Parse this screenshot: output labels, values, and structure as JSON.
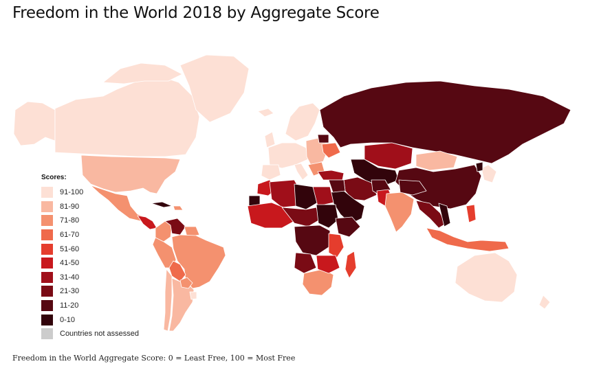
{
  "title": "Freedom in the World 2018 by Aggregate Score",
  "legend": {
    "title": "Scores:",
    "items": [
      {
        "label": "91-100",
        "color": "#fde0d5"
      },
      {
        "label": "81-90",
        "color": "#f9b8a1"
      },
      {
        "label": "71-80",
        "color": "#f4916f"
      },
      {
        "label": "61-70",
        "color": "#ef6a4b"
      },
      {
        "label": "51-60",
        "color": "#e53d2d"
      },
      {
        "label": "41-50",
        "color": "#c8181d"
      },
      {
        "label": "31-40",
        "color": "#a00f1a"
      },
      {
        "label": "21-30",
        "color": "#7a0b15"
      },
      {
        "label": "11-20",
        "color": "#560812"
      },
      {
        "label": "0-10",
        "color": "#32040b"
      },
      {
        "label": "Countries not assessed",
        "color": "#cccccc"
      }
    ]
  },
  "footnote": "Freedom in the World Aggregate Score: 0 = Least Free, 100 = Most Free"
}
